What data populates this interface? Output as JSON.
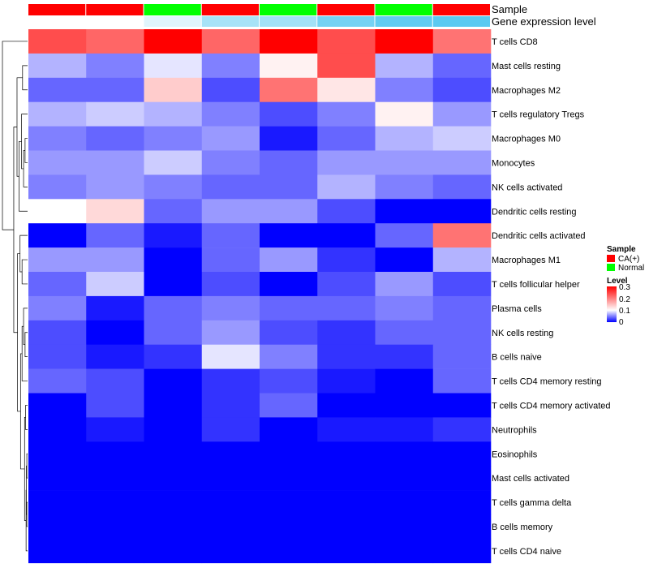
{
  "chart_data": {
    "type": "heatmap",
    "title": "",
    "annotation_rows": [
      "Sample",
      "Gene expression level"
    ],
    "columns": [
      {
        "sample": "CA(+)",
        "level": 0.0
      },
      {
        "sample": "CA(+)",
        "level": 0.0
      },
      {
        "sample": "Normal",
        "level": 0.01
      },
      {
        "sample": "CA(+)",
        "level": 0.08
      },
      {
        "sample": "Normal",
        "level": 0.09
      },
      {
        "sample": "CA(+)",
        "level": 0.2
      },
      {
        "sample": "Normal",
        "level": 0.26
      },
      {
        "sample": "CA(+)",
        "level": 0.28
      }
    ],
    "rows": [
      "T cells CD8",
      "Mast cells resting",
      "Macrophages M2",
      "T cells regulatory  Tregs",
      "Macrophages M0",
      "Monocytes",
      "NK cells activated",
      "Dendritic cells resting",
      "Dendritic cells activated",
      "Macrophages M1",
      "T cells follicular helper",
      "Plasma cells",
      "NK cells resting",
      "B cells naive",
      "T cells CD4 memory resting",
      "T cells CD4 memory activated",
      "Neutrophils",
      "Eosinophils",
      "Mast cells activated",
      "T cells gamma delta",
      "B cells memory",
      "T cells CD4 naive"
    ],
    "values": [
      [
        0.24,
        0.22,
        0.3,
        0.22,
        0.3,
        0.24,
        0.3,
        0.21
      ],
      [
        0.07,
        0.05,
        0.09,
        0.05,
        0.11,
        0.24,
        0.07,
        0.04
      ],
      [
        0.04,
        0.04,
        0.14,
        0.03,
        0.21,
        0.12,
        0.05,
        0.03
      ],
      [
        0.07,
        0.08,
        0.07,
        0.05,
        0.03,
        0.05,
        0.11,
        0.06
      ],
      [
        0.05,
        0.04,
        0.05,
        0.06,
        0.01,
        0.04,
        0.07,
        0.08
      ],
      [
        0.06,
        0.06,
        0.08,
        0.05,
        0.04,
        0.06,
        0.06,
        0.06
      ],
      [
        0.05,
        0.06,
        0.05,
        0.04,
        0.04,
        0.07,
        0.05,
        0.04
      ],
      [
        0.1,
        0.13,
        0.04,
        0.06,
        0.06,
        0.03,
        0.0,
        0.0
      ],
      [
        0.0,
        0.04,
        0.01,
        0.04,
        0.0,
        0.0,
        0.04,
        0.21
      ],
      [
        0.06,
        0.06,
        0.0,
        0.04,
        0.06,
        0.02,
        0.0,
        0.07
      ],
      [
        0.04,
        0.08,
        0.0,
        0.03,
        0.0,
        0.03,
        0.06,
        0.03
      ],
      [
        0.05,
        0.01,
        0.04,
        0.05,
        0.04,
        0.04,
        0.05,
        0.04
      ],
      [
        0.03,
        0.0,
        0.04,
        0.06,
        0.03,
        0.02,
        0.04,
        0.04
      ],
      [
        0.03,
        0.01,
        0.02,
        0.09,
        0.05,
        0.02,
        0.02,
        0.04
      ],
      [
        0.04,
        0.03,
        0.0,
        0.02,
        0.03,
        0.01,
        0.0,
        0.04
      ],
      [
        0.0,
        0.03,
        0.0,
        0.02,
        0.04,
        0.0,
        0.0,
        0.0
      ],
      [
        0.0,
        0.01,
        0.0,
        0.02,
        0.0,
        0.01,
        0.01,
        0.02
      ],
      [
        0.0,
        0.0,
        0.0,
        0.0,
        0.0,
        0.0,
        0.0,
        0.0
      ],
      [
        0.0,
        0.0,
        0.0,
        0.0,
        0.0,
        0.0,
        0.0,
        0.0
      ],
      [
        0.0,
        0.0,
        0.0,
        0.0,
        0.0,
        0.0,
        0.0,
        0.0
      ],
      [
        0.0,
        0.0,
        0.0,
        0.0,
        0.0,
        0.0,
        0.0,
        0.0
      ],
      [
        0.0,
        0.0,
        0.0,
        0.0,
        0.0,
        0.0,
        0.0,
        0.0
      ]
    ],
    "color_scale": {
      "min": 0,
      "mid": 0.1,
      "max": 0.3,
      "low": "#0000ff",
      "mid_color": "#ffffff",
      "high": "#ff0000"
    },
    "legend": {
      "placement": "right",
      "sample_title": "Sample",
      "sample_entries": [
        {
          "label": "CA(+)",
          "color": "#ff0000"
        },
        {
          "label": "Normal",
          "color": "#00ff00"
        }
      ],
      "level_title": "Level",
      "level_ticks": [
        "0.3",
        "0.2",
        "0.1",
        "0"
      ],
      "level_colors": [
        "#ff0000",
        "#ffffff",
        "#0000ff"
      ]
    },
    "dendrogram": "rows"
  }
}
